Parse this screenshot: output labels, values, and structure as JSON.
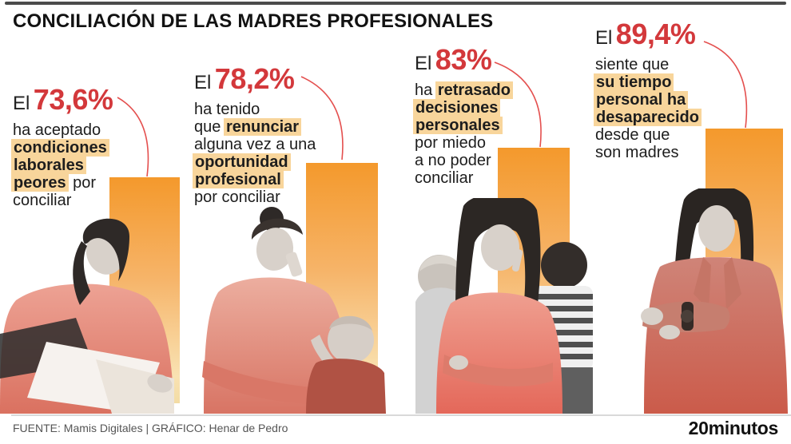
{
  "header": {
    "title": "CONCILIACIÓN DE LAS MADRES PROFESIONALES"
  },
  "colors": {
    "accent_red": "#d3383b",
    "connector_red": "#e4504f",
    "highlight": "#f8d59b",
    "bar_gradient_top": "#f4992c",
    "bar_gradient_bottom": "#f3dca4",
    "body_text": "#1d1d1d",
    "footer_text": "#555555",
    "top_bar": "#4b4b4b"
  },
  "chart_data": {
    "type": "bar",
    "title": "CONCILIACIÓN DE LAS MADRES PROFESIONALES",
    "categories": [
      "ha aceptado condiciones laborales peores por conciliar",
      "ha tenido que renunciar alguna vez a una oportunidad profesional por conciliar",
      "ha retrasado decisiones personales por miedo a no poder conciliar",
      "siente que su tiempo personal ha desaparecido desde que son madres"
    ],
    "values": [
      73.6,
      78.2,
      83,
      89.4
    ],
    "value_labels": [
      "73,6%",
      "78,2%",
      "83%",
      "89,4%"
    ],
    "unit": "%",
    "ylim": [
      0,
      100
    ],
    "grid": false,
    "legend": false,
    "orientation": "vertical",
    "bar_fill": "orange gradient fading downward"
  },
  "stats": [
    {
      "prefix": "El",
      "pct": "73,6%",
      "lines": [
        [
          {
            "t": "ha aceptado"
          }
        ],
        [
          {
            "t": "condiciones",
            "h": true
          }
        ],
        [
          {
            "t": "laborales",
            "h": true
          }
        ],
        [
          {
            "t": "peores",
            "h": true
          },
          {
            "t": " por"
          }
        ],
        [
          {
            "t": "conciliar"
          }
        ]
      ],
      "photo": "woman reading documents"
    },
    {
      "prefix": "El",
      "pct": "78,2%",
      "lines": [
        [
          {
            "t": "ha tenido"
          }
        ],
        [
          {
            "t": "que "
          },
          {
            "t": "renunciar",
            "h": true
          }
        ],
        [
          {
            "t": "alguna vez a una"
          }
        ],
        [
          {
            "t": "oportunidad",
            "h": true
          }
        ],
        [
          {
            "t": "profesional",
            "h": true
          }
        ],
        [
          {
            "t": "por conciliar"
          }
        ]
      ],
      "photo": "woman on phone holding baby"
    },
    {
      "prefix": "El",
      "pct": "83%",
      "lines": [
        [
          {
            "t": "ha "
          },
          {
            "t": "retrasado",
            "h": true
          }
        ],
        [
          {
            "t": "decisiones",
            "h": true
          }
        ],
        [
          {
            "t": "personales",
            "h": true
          }
        ],
        [
          {
            "t": "por miedo"
          }
        ],
        [
          {
            "t": "a no poder"
          }
        ],
        [
          {
            "t": "conciliar"
          }
        ]
      ],
      "photo": "pensive woman with two children"
    },
    {
      "prefix": "El",
      "pct": "89,4%",
      "lines": [
        [
          {
            "t": "siente que"
          }
        ],
        [
          {
            "t": "su tiempo",
            "h": true
          }
        ],
        [
          {
            "t": "personal ha",
            "h": true
          }
        ],
        [
          {
            "t": "desaparecido",
            "h": true
          }
        ],
        [
          {
            "t": "desde que"
          }
        ],
        [
          {
            "t": "son madres"
          }
        ]
      ],
      "photo": "woman checking her watch"
    }
  ],
  "footer": {
    "credits": "FUENTE: Mamis Digitales  |  GRÁFICO: Henar de Pedro",
    "brand": "20minutos"
  }
}
